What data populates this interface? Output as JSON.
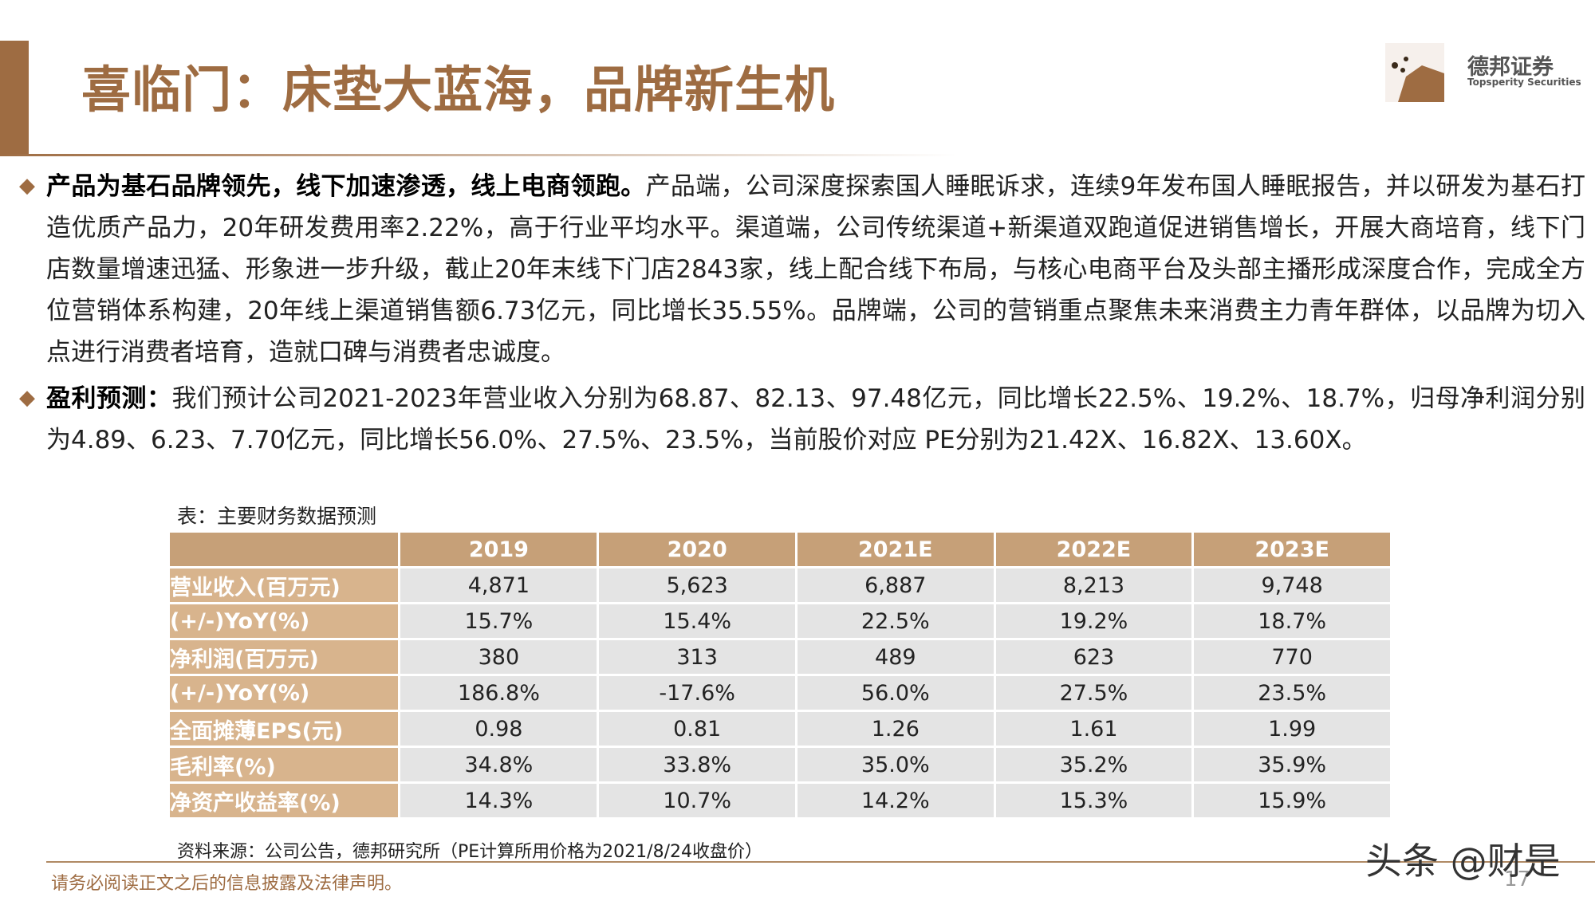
{
  "header": {
    "title": "喜临门：床垫大蓝海，品牌新生机",
    "logo_name": "德邦证券",
    "logo_sub": "Topsperity Securities"
  },
  "paragraphs": [
    {
      "lead": "产品为基石品牌领先，线下加速渗透，线上电商领跑。",
      "text": "产品端，公司深度探索国人睡眠诉求，连续9年发布国人睡眠报告，并以研发为基石打造优质产品力，20年研发费用率2.22%，高于行业平均水平。渠道端，公司传统渠道+新渠道双跑道促进销售增长，开展大商培育，线下门店数量增速迅猛、形象进一步升级，截止20年末线下门店2843家，线上配合线下布局，与核心电商平台及头部主播形成深度合作，完成全方位营销体系构建，20年线上渠道销售额6.73亿元，同比增长35.55%。品牌端，公司的营销重点聚焦未来消费主力青年群体，以品牌为切入点进行消费者培育，造就口碑与消费者忠诚度。"
    },
    {
      "lead": "盈利预测：",
      "text": "我们预计公司2021-2023年营业收入分别为68.87、82.13、97.48亿元，同比增长22.5%、19.2%、18.7%，归母净利润分别为4.89、6.23、7.70亿元，同比增长56.0%、27.5%、23.5%，当前股价对应 PE分别为21.42X、16.82X、13.60X。"
    }
  ],
  "table": {
    "caption": "表：主要财务数据预测",
    "header": [
      "",
      "2019",
      "2020",
      "2021E",
      "2022E",
      "2023E"
    ],
    "rows": [
      [
        "营业收入(百万元)",
        "4,871",
        "5,623",
        "6,887",
        "8,213",
        "9,748"
      ],
      [
        "(+/-)YoY(%)",
        "15.7%",
        "15.4%",
        "22.5%",
        "19.2%",
        "18.7%"
      ],
      [
        "净利润(百万元)",
        "380",
        "313",
        "489",
        "623",
        "770"
      ],
      [
        "(+/-)YoY(%)",
        "186.8%",
        "-17.6%",
        "56.0%",
        "27.5%",
        "23.5%"
      ],
      [
        "全面摊薄EPS(元)",
        "0.98",
        "0.81",
        "1.26",
        "1.61",
        "1.99"
      ],
      [
        "毛利率(%)",
        "34.8%",
        "33.8%",
        "35.0%",
        "35.2%",
        "35.9%"
      ],
      [
        "净资产收益率(%)",
        "14.3%",
        "10.7%",
        "14.2%",
        "15.3%",
        "15.9%"
      ]
    ],
    "source": "资料来源：公司公告，德邦研究所（PE计算所用价格为2021/8/24收盘价）"
  },
  "footer": {
    "disclaimer": "请务必阅读正文之后的信息披露及法律声明。",
    "page": "17",
    "watermark": "头条 @财是"
  }
}
